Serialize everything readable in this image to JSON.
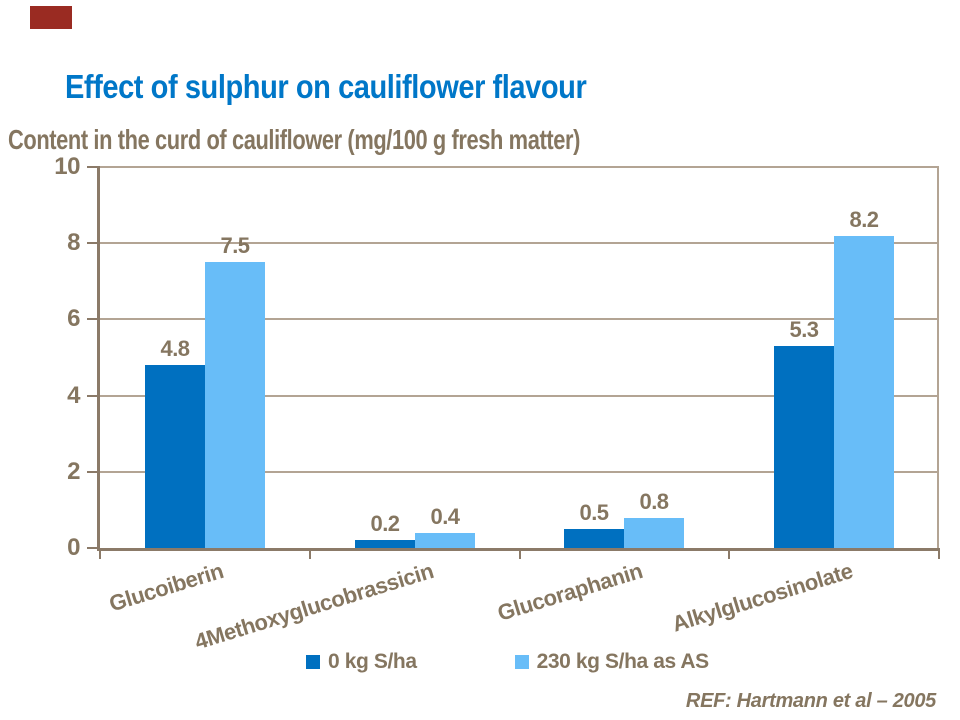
{
  "slide": {
    "title": "Effect of sulphur on cauliflower flavour",
    "subtitle": "Content in the curd of cauliflower (mg/100 g fresh matter)",
    "reference": "REF: Hartmann et al – 2005",
    "accent_bar_color": "#9A2B22"
  },
  "colors": {
    "title_blue": "#0077C8",
    "text_brown": "#857660",
    "axis_brown": "#8B7A68",
    "grid_brown": "#B3A494",
    "series1_blue": "#0070C0",
    "series2_blue": "#68BDF8",
    "background": "#FFFFFF"
  },
  "chart_data": {
    "type": "bar",
    "categories": [
      "Glucoiberin",
      "4Methoxyglucobrassicin",
      "Glucoraphanin",
      "Alkylglucosinolate"
    ],
    "series": [
      {
        "name": "0 kg S/ha",
        "color": "#0070C0",
        "values": [
          4.8,
          0.2,
          0.5,
          5.3
        ]
      },
      {
        "name": "230 kg S/ha as AS",
        "color": "#68BDF8",
        "values": [
          7.5,
          0.4,
          0.8,
          8.2
        ]
      }
    ],
    "title": "Effect of sulphur on cauliflower flavour",
    "axis_title": "Content in the curd of cauliflower (mg/100 g fresh matter)",
    "xlabel": "",
    "ylabel": "",
    "ylim": [
      0,
      10
    ],
    "yticks": [
      0,
      2,
      4,
      6,
      8,
      10
    ],
    "grid": true,
    "plot_border": true,
    "data_labels": true,
    "data_label_decimals": 1,
    "legend_position": "bottom",
    "category_label_rotation_deg": -17
  }
}
